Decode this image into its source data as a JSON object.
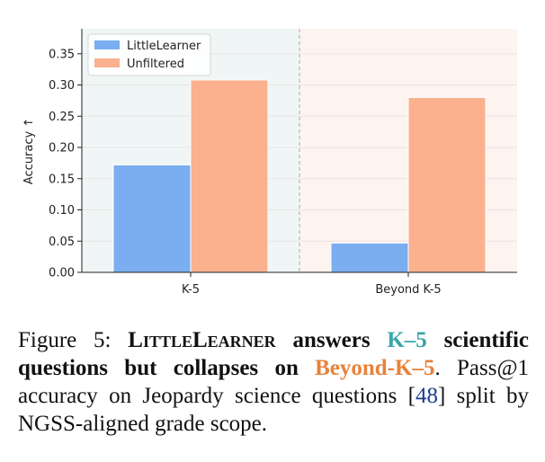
{
  "chart_data": {
    "type": "bar",
    "categories": [
      "K-5",
      "Beyond K-5"
    ],
    "series": [
      {
        "name": "LittleLearner",
        "values": [
          0.172,
          0.047
        ],
        "color": "#7aaef0"
      },
      {
        "name": "Unfiltered",
        "values": [
          0.308,
          0.28
        ],
        "color": "#fbb08e"
      }
    ],
    "ylabel": "Accuracy ↑",
    "xlabel": "",
    "ylim": [
      0,
      0.39
    ],
    "yticks": [
      "0.00",
      "0.05",
      "0.10",
      "0.15",
      "0.20",
      "0.25",
      "0.30",
      "0.35"
    ],
    "legend_position": "top-left",
    "region_colors": {
      "K-5": "#f0f6f6",
      "Beyond K-5": "#fdf3ef"
    },
    "grid": true
  },
  "caption": {
    "label": "Figure 5: ",
    "title_smallcaps": "LittleLearner",
    "title_1": " answers ",
    "title_k5": "K–5",
    "title_2": " scientific questions but collapses on ",
    "title_beyond": "Beyond-K–5",
    "body_1": ". Pass@1 accuracy on Jeopardy science questions ",
    "cite_open": "[",
    "cite_num": "48",
    "cite_close": "]",
    "body_2": " split by NGSS-aligned grade scope."
  }
}
